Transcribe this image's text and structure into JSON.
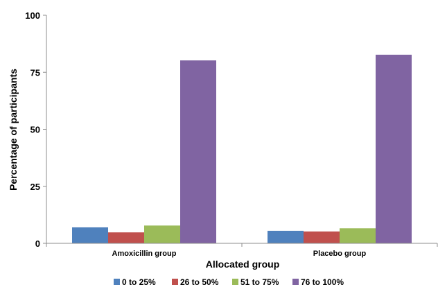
{
  "chart_data": {
    "type": "bar",
    "categories": [
      "Amoxicillin group",
      "Placebo group"
    ],
    "series": [
      {
        "name": "0 to 25%",
        "values": [
          7,
          5.5
        ],
        "color": "#4F81BD"
      },
      {
        "name": "26 to 50%",
        "values": [
          4.8,
          5.2
        ],
        "color": "#C0504D"
      },
      {
        "name": "51 to 75%",
        "values": [
          7.8,
          6.6
        ],
        "color": "#9BBB59"
      },
      {
        "name": "76 to 100%",
        "values": [
          80.2,
          82.7
        ],
        "color": "#8064A2"
      }
    ],
    "title": "",
    "xlabel": "Allocated group",
    "ylabel": "Percentage of participants",
    "ylim": [
      0,
      100
    ],
    "yticks": [
      0,
      25,
      50,
      75,
      100
    ],
    "grid": false,
    "legend_position": "bottom"
  }
}
